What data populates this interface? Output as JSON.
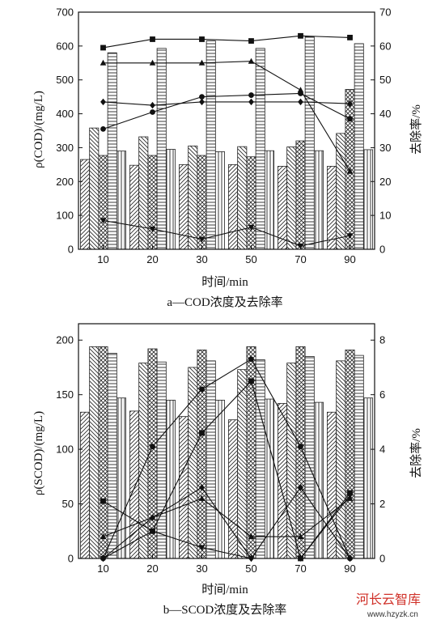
{
  "chart_data": [
    {
      "id": "a",
      "type": "bar",
      "categories": [
        "10",
        "20",
        "30",
        "50",
        "70",
        "90"
      ],
      "xlabel": "时间/min",
      "ylabel": "ρ(COD)/(mg/L)",
      "y2label": "去除率/%",
      "ylim": [
        0,
        700
      ],
      "y2lim": [
        0,
        70
      ],
      "yticks": [
        0,
        100,
        200,
        300,
        400,
        500,
        600,
        700
      ],
      "y2ticks": [
        0,
        10,
        20,
        30,
        40,
        50,
        60,
        70
      ],
      "caption": "a—COD浓度及去除率",
      "bars": [
        {
          "values": [
            265,
            248,
            250,
            250,
            245,
            245
          ]
        },
        {
          "values": [
            358,
            332,
            305,
            303,
            302,
            342
          ]
        },
        {
          "values": [
            277,
            277,
            277,
            273,
            320,
            472
          ]
        },
        {
          "values": [
            580,
            593,
            615,
            593,
            628,
            607
          ]
        },
        {
          "values": [
            290,
            295,
            288,
            291,
            291,
            294
          ]
        }
      ],
      "lines": [
        {
          "marker": "square",
          "values": [
            59.5,
            62,
            62,
            61.5,
            63,
            62.5
          ]
        },
        {
          "marker": "triangle",
          "values": [
            55,
            55,
            55,
            55.5,
            47,
            23
          ]
        },
        {
          "marker": "diamond",
          "values": [
            43.5,
            42.5,
            43.5,
            43.5,
            43.5,
            43
          ]
        },
        {
          "marker": "circle",
          "values": [
            35.5,
            40.5,
            45,
            45.5,
            46,
            38.5
          ]
        },
        {
          "marker": "triangle-down",
          "values": [
            8.5,
            6,
            3,
            6.5,
            1,
            4
          ]
        }
      ]
    },
    {
      "id": "b",
      "type": "bar",
      "categories": [
        "10",
        "20",
        "30",
        "50",
        "70",
        "90"
      ],
      "xlabel": "时间/min",
      "ylabel": "ρ(SCOD)/(mg/L)",
      "y2label": "去除率/%",
      "ylim": [
        0,
        215
      ],
      "y2lim": [
        0,
        8.6
      ],
      "yticks": [
        0,
        50,
        100,
        150,
        200
      ],
      "y2ticks": [
        0,
        2,
        4,
        6,
        8
      ],
      "caption": "b—SCOD浓度及去除率",
      "bars": [
        {
          "values": [
            134,
            135,
            130,
            127,
            142,
            134
          ]
        },
        {
          "values": [
            194,
            179,
            175,
            173,
            179,
            181
          ]
        },
        {
          "values": [
            194,
            192,
            191,
            194,
            194,
            191
          ]
        },
        {
          "values": [
            188,
            180,
            181,
            182,
            185,
            186
          ]
        },
        {
          "values": [
            147,
            145,
            145,
            146,
            143,
            147
          ]
        }
      ],
      "lines": [
        {
          "marker": "square",
          "values": [
            2.1,
            1.0,
            4.6,
            6.5,
            0.0,
            2.4
          ]
        },
        {
          "marker": "circle",
          "values": [
            0.0,
            4.1,
            6.2,
            7.3,
            4.1,
            0.0
          ]
        },
        {
          "marker": "triangle",
          "values": [
            0.8,
            1.5,
            2.2,
            0.8,
            0.8,
            2.2
          ]
        },
        {
          "marker": "diamond",
          "values": [
            0.0,
            1.5,
            2.6,
            0.0,
            2.6,
            0.0
          ]
        },
        {
          "marker": "triangle-down",
          "values": [
            0.0,
            1.0,
            0.4,
            0.0,
            0.0,
            2.3
          ]
        }
      ]
    }
  ],
  "watermark": {
    "name": "河长云智库",
    "url": "www.hzyzk.cn"
  }
}
